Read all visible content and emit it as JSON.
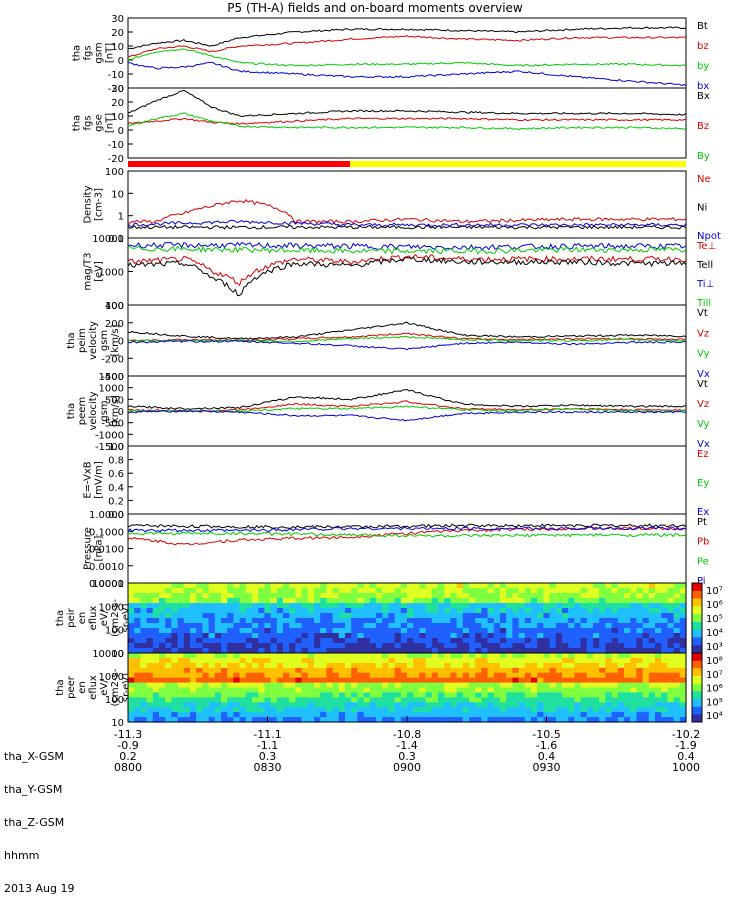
{
  "title": "P5 (TH-A) fields and on-board moments overview",
  "chart_data": [
    {
      "type": "line",
      "panel": "tha_fgs_gsm",
      "ylabel": [
        "tha",
        "fgs",
        "gsm",
        "[nT]"
      ],
      "yticks": [
        "30",
        "20",
        "10",
        "0",
        "-10",
        "-20"
      ],
      "ylim": [
        -20,
        30
      ],
      "series": [
        {
          "name": "Bt",
          "color": "#000000",
          "x": [
            0,
            0.05,
            0.1,
            0.15,
            0.2,
            0.3,
            0.4,
            0.5,
            0.6,
            0.7,
            0.8,
            0.9,
            1.0
          ],
          "values": [
            8,
            12,
            14,
            10,
            16,
            20,
            22,
            22,
            21,
            20,
            22,
            23,
            23
          ]
        },
        {
          "name": "bz",
          "color": "#e00000",
          "x": [
            0,
            0.05,
            0.1,
            0.15,
            0.2,
            0.3,
            0.4,
            0.5,
            0.6,
            0.7,
            0.8,
            0.9,
            1.0
          ],
          "values": [
            2,
            8,
            10,
            6,
            10,
            12,
            15,
            17,
            15,
            14,
            16,
            16,
            16
          ]
        },
        {
          "name": "by",
          "color": "#00cc00",
          "x": [
            0,
            0.05,
            0.1,
            0.15,
            0.2,
            0.3,
            0.4,
            0.5,
            0.6,
            0.7,
            0.8,
            0.9,
            1.0
          ],
          "values": [
            0,
            6,
            8,
            3,
            -2,
            -4,
            -3,
            -3,
            -2,
            -4,
            -3,
            -3,
            -4
          ]
        },
        {
          "name": "bx",
          "color": "#0000dd",
          "x": [
            0,
            0.05,
            0.1,
            0.15,
            0.2,
            0.3,
            0.4,
            0.5,
            0.6,
            0.7,
            0.8,
            0.9,
            1.0
          ],
          "values": [
            -2,
            -6,
            -5,
            -2,
            -8,
            -10,
            -12,
            -12,
            -10,
            -8,
            -12,
            -15,
            -18
          ]
        }
      ]
    },
    {
      "type": "line",
      "panel": "tha_fgs_gse",
      "ylabel": [
        "tha",
        "fgs",
        "gse",
        "[nT]"
      ],
      "yticks": [
        "30",
        "20",
        "10",
        "0",
        "-10",
        "-20"
      ],
      "ylim": [
        -25,
        30
      ],
      "series": [
        {
          "name": "Bx",
          "color": "#000000",
          "x": [
            0,
            0.05,
            0.1,
            0.15,
            0.2,
            0.3,
            0.4,
            0.5,
            0.6,
            0.7,
            0.8,
            0.9,
            1.0
          ],
          "values": [
            10,
            20,
            28,
            15,
            8,
            10,
            12,
            12,
            11,
            10,
            10,
            10,
            9
          ]
        },
        {
          "name": "Bz",
          "color": "#e00000",
          "x": [
            0,
            0.05,
            0.1,
            0.15,
            0.2,
            0.3,
            0.4,
            0.5,
            0.6,
            0.7,
            0.8,
            0.9,
            1.0
          ],
          "values": [
            2,
            4,
            6,
            3,
            2,
            4,
            6,
            6,
            6,
            5,
            5,
            5,
            5
          ]
        },
        {
          "name": "By",
          "color": "#00cc00",
          "x": [
            0,
            0.05,
            0.1,
            0.15,
            0.2,
            0.3,
            0.4,
            0.5,
            0.6,
            0.7,
            0.8,
            0.9,
            1.0
          ],
          "values": [
            0,
            6,
            10,
            4,
            0,
            -1,
            -1,
            -1,
            -1,
            -2,
            -1,
            -1,
            -2
          ]
        }
      ]
    },
    {
      "type": "line",
      "panel": "density",
      "ylabel": [
        "Density",
        "[cm-3]"
      ],
      "yticks": [
        "100",
        "10",
        "1",
        "0.1"
      ],
      "ylog": true,
      "ylim": [
        0.04,
        150
      ],
      "series": [
        {
          "name": "Ne",
          "color": "#e00000",
          "x": [
            0,
            0.05,
            0.1,
            0.15,
            0.2,
            0.3,
            0.4,
            0.5,
            0.6,
            0.7,
            0.8,
            0.9,
            1.0
          ],
          "values": [
            0.3,
            0.3,
            0.8,
            2,
            4,
            0.3,
            0.3,
            0.4,
            0.3,
            0.35,
            0.4,
            0.4,
            0.4
          ]
        },
        {
          "name": "Ni",
          "color": "#000000",
          "x": [
            0,
            0.2,
            0.4,
            0.6,
            0.8,
            1.0
          ],
          "values": [
            0.15,
            0.15,
            0.15,
            0.15,
            0.15,
            0.15
          ]
        },
        {
          "name": "Npot",
          "color": "#0000dd",
          "x": [
            0,
            0.2,
            0.4,
            0.6,
            0.8,
            1.0
          ],
          "values": [
            0.2,
            0.3,
            0.2,
            0.2,
            0.2,
            0.2
          ]
        }
      ]
    },
    {
      "type": "line",
      "panel": "temperature",
      "ylabel": [
        "mag/T3",
        "[eV]"
      ],
      "yticks": [
        "10000",
        "1000",
        "100"
      ],
      "ylog": true,
      "ylim": [
        80,
        12000
      ],
      "series": [
        {
          "name": "Te⊥",
          "color": "#e00000",
          "x": [
            0,
            0.1,
            0.15,
            0.2,
            0.3,
            0.4,
            0.5,
            0.6,
            0.7,
            0.8,
            0.9,
            1.0
          ],
          "values": [
            2000,
            2500,
            1000,
            400,
            2500,
            2000,
            3000,
            2500,
            2500,
            2500,
            2500,
            2500
          ]
        },
        {
          "name": "Tell",
          "color": "#000000",
          "x": [
            0,
            0.1,
            0.15,
            0.2,
            0.3,
            0.4,
            0.5,
            0.6,
            0.7,
            0.8,
            0.9,
            1.0
          ],
          "values": [
            1500,
            1800,
            600,
            150,
            1800,
            1500,
            2500,
            2000,
            2000,
            2000,
            1800,
            1800
          ]
        },
        {
          "name": "Ti⊥",
          "color": "#0000dd",
          "x": [
            0,
            0.2,
            0.4,
            0.6,
            0.8,
            1.0
          ],
          "values": [
            7000,
            7000,
            6500,
            6000,
            6500,
            6500
          ]
        },
        {
          "name": "Till",
          "color": "#00cc00",
          "x": [
            0,
            0.2,
            0.4,
            0.6,
            0.8,
            1.0
          ],
          "values": [
            5500,
            5000,
            4500,
            4500,
            5000,
            5000
          ]
        }
      ]
    },
    {
      "type": "line",
      "panel": "tha_peim_velocity",
      "ylabel": [
        "tha",
        "peim",
        "velocity",
        "gsm",
        "[km/s]"
      ],
      "yticks": [
        "400",
        "200",
        "0",
        "-200",
        "-400"
      ],
      "ylim": [
        -400,
        400
      ],
      "series": [
        {
          "name": "Vt",
          "color": "#000000",
          "x": [
            0,
            0.1,
            0.2,
            0.3,
            0.4,
            0.5,
            0.6,
            0.7,
            0.8,
            0.9,
            1.0
          ],
          "values": [
            100,
            50,
            20,
            40,
            120,
            200,
            60,
            40,
            50,
            60,
            50
          ]
        },
        {
          "name": "Vz",
          "color": "#e00000",
          "x": [
            0,
            0.1,
            0.2,
            0.3,
            0.4,
            0.5,
            0.6,
            0.7,
            0.8,
            0.9,
            1.0
          ],
          "values": [
            0,
            10,
            0,
            20,
            40,
            80,
            20,
            10,
            20,
            20,
            10
          ]
        },
        {
          "name": "Vy",
          "color": "#00cc00",
          "x": [
            0,
            0.1,
            0.2,
            0.3,
            0.4,
            0.5,
            0.6,
            0.7,
            0.8,
            0.9,
            1.0
          ],
          "values": [
            0,
            0,
            0,
            -10,
            20,
            40,
            10,
            0,
            0,
            10,
            0
          ]
        },
        {
          "name": "Vx",
          "color": "#0000dd",
          "x": [
            0,
            0.1,
            0.2,
            0.3,
            0.4,
            0.5,
            0.6,
            0.7,
            0.8,
            0.9,
            1.0
          ],
          "values": [
            -20,
            -10,
            -10,
            -30,
            -60,
            -100,
            -30,
            -20,
            -40,
            -20,
            -20
          ]
        }
      ]
    },
    {
      "type": "line",
      "panel": "tha_peem_velocity",
      "ylabel": [
        "tha",
        "peem",
        "velocity",
        "gsm",
        "[km/s]"
      ],
      "yticks": [
        "1500",
        "1000",
        "500",
        "0",
        "-500",
        "-1000",
        "-1500"
      ],
      "ylim": [
        -1500,
        1500
      ],
      "series": [
        {
          "name": "Vt",
          "color": "#000000",
          "x": [
            0,
            0.1,
            0.2,
            0.3,
            0.4,
            0.5,
            0.6,
            0.7,
            0.8,
            0.9,
            1.0
          ],
          "values": [
            200,
            100,
            150,
            600,
            500,
            900,
            300,
            200,
            250,
            200,
            200
          ]
        },
        {
          "name": "Vz",
          "color": "#e00000",
          "x": [
            0,
            0.1,
            0.2,
            0.3,
            0.4,
            0.5,
            0.6,
            0.7,
            0.8,
            0.9,
            1.0
          ],
          "values": [
            50,
            0,
            50,
            300,
            200,
            400,
            100,
            50,
            100,
            50,
            50
          ]
        },
        {
          "name": "Vy",
          "color": "#00cc00",
          "x": [
            0,
            0.1,
            0.2,
            0.3,
            0.4,
            0.5,
            0.6,
            0.7,
            0.8,
            0.9,
            1.0
          ],
          "values": [
            0,
            0,
            0,
            100,
            100,
            200,
            50,
            0,
            100,
            0,
            0
          ]
        },
        {
          "name": "Vx",
          "color": "#0000dd",
          "x": [
            0,
            0.1,
            0.2,
            0.3,
            0.4,
            0.5,
            0.6,
            0.7,
            0.8,
            0.9,
            1.0
          ],
          "values": [
            -50,
            0,
            -50,
            -200,
            -200,
            -400,
            -100,
            -50,
            -50,
            -50,
            -50
          ]
        }
      ]
    },
    {
      "type": "line",
      "panel": "efield",
      "ylabel": [
        "E=-VxB",
        "[mV/m]"
      ],
      "yticks": [
        "1.0",
        "0.8",
        "0.6",
        "0.4",
        "0.2",
        "0.0"
      ],
      "ylim": [
        0,
        1
      ],
      "series": [
        {
          "name": "Ez",
          "color": "#e00000",
          "values": []
        },
        {
          "name": "Ey",
          "color": "#00cc00",
          "values": []
        },
        {
          "name": "Ex",
          "color": "#0000dd",
          "values": []
        }
      ]
    },
    {
      "type": "line",
      "panel": "pressure",
      "ylabel": [
        "Pressure",
        "[nPa]"
      ],
      "yticks": [
        "1.0000",
        "0.1000",
        "0.0100",
        "0.0010",
        "0.0001"
      ],
      "ylog": true,
      "ylim": [
        0.0001,
        1.5
      ],
      "series": [
        {
          "name": "Pt",
          "color": "#000000",
          "x": [
            0,
            0.2,
            0.4,
            0.6,
            0.8,
            1.0
          ],
          "values": [
            0.3,
            0.25,
            0.25,
            0.3,
            0.3,
            0.3
          ]
        },
        {
          "name": "Pb",
          "color": "#e00000",
          "x": [
            0,
            0.1,
            0.2,
            0.3,
            0.4,
            0.5,
            0.6,
            0.8,
            1.0
          ],
          "values": [
            0.05,
            0.02,
            0.04,
            0.05,
            0.06,
            0.1,
            0.15,
            0.2,
            0.2
          ]
        },
        {
          "name": "Pe",
          "color": "#00cc00",
          "x": [
            0,
            0.2,
            0.4,
            0.6,
            0.8,
            1.0
          ],
          "values": [
            0.1,
            0.1,
            0.08,
            0.07,
            0.08,
            0.08
          ]
        },
        {
          "name": "Pi",
          "color": "#0000dd",
          "x": [
            0,
            0.2,
            0.4,
            0.6,
            0.8,
            1.0
          ],
          "values": [
            0.15,
            0.15,
            0.2,
            0.2,
            0.2,
            0.2
          ]
        }
      ]
    },
    {
      "type": "heatmap",
      "panel": "tha_peir_en_eflux",
      "ylabel": [
        "tha",
        "peir",
        "en",
        "eflux",
        "eV/",
        "(cm2-s-",
        "sr-eV)"
      ],
      "yticks": [
        "10000",
        "1000",
        "100",
        "10"
      ],
      "colorbar_ticks": [
        "10⁷",
        "10⁶",
        "10⁵",
        "10⁴",
        "10³"
      ]
    },
    {
      "type": "heatmap",
      "panel": "tha_peer_en_eflux",
      "ylabel": [
        "tha",
        "peer",
        "en",
        "eflux",
        "eV/",
        "(cm2-s-",
        "sr-eV)"
      ],
      "yticks": [
        "10000",
        "1000",
        "100",
        "10"
      ],
      "colorbar_ticks": [
        "10⁸",
        "10⁷",
        "10⁶",
        "10⁵",
        "10⁴"
      ]
    }
  ],
  "footer": {
    "rows": [
      {
        "label": "tha_X-GSM",
        "values": [
          "-11.3",
          "-11.1",
          "-10.8",
          "-10.5",
          "-10.2"
        ]
      },
      {
        "label": "tha_Y-GSM",
        "values": [
          "-0.9",
          "-1.1",
          "-1.4",
          "-1.6",
          "-1.9"
        ]
      },
      {
        "label": "tha_Z-GSM",
        "values": [
          "0.2",
          "0.3",
          "0.3",
          "0.4",
          "0.4"
        ]
      },
      {
        "label": "hhmm",
        "values": [
          "0800",
          "0830",
          "0900",
          "0930",
          "1000"
        ]
      }
    ],
    "date": "2013 Aug 19"
  }
}
